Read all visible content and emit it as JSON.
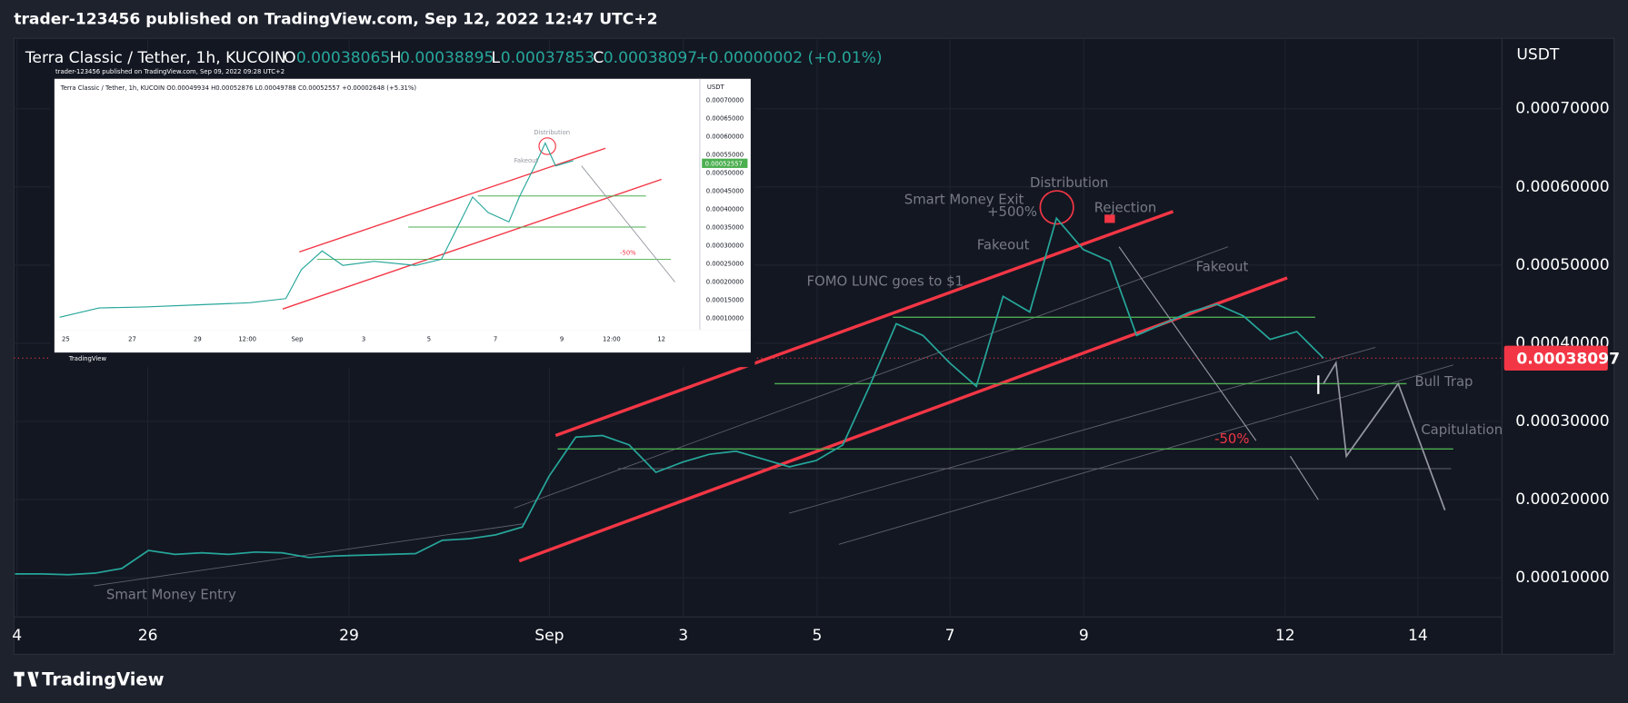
{
  "header": {
    "title": "trader-123456 published on TradingView.com, Sep 12, 2022 12:47 UTC+2"
  },
  "legend": {
    "symbol": "Terra Classic / Tether, 1h, KUCOIN",
    "o_label": "O",
    "o": "0.00038065",
    "h_label": "H",
    "h": "0.00038895",
    "l_label": "L",
    "l": "0.00037853",
    "c_label": "C",
    "c": "0.00038097",
    "change": "+0.00000002 (+0.01%)"
  },
  "chart_data": {
    "type": "line",
    "color": "#26a69a",
    "currency": "USDT",
    "grid": true,
    "values": [
      0.000105,
      0.000105,
      0.000104,
      0.000106,
      0.000112,
      0.000135,
      0.00013,
      0.000132,
      0.00013,
      0.000133,
      0.000132,
      0.000126,
      0.000128,
      0.000129,
      0.00013,
      0.000131,
      0.000148,
      0.00015,
      0.000155,
      0.000165,
      0.00023,
      0.00028,
      0.000282,
      0.00027,
      0.000235,
      0.000248,
      0.000258,
      0.000262,
      0.000252,
      0.000242,
      0.00025,
      0.00027,
      0.000345,
      0.000425,
      0.00041,
      0.000375,
      0.000345,
      0.00046,
      0.00044,
      0.00056,
      0.00052,
      0.000505,
      0.00041,
      0.000425,
      0.00044,
      0.00045,
      0.000435,
      0.000405,
      0.000415,
      0.000381
    ],
    "ylim": [
      5e-05,
      0.00079
    ],
    "yticks": [
      {
        "value": 0.0007,
        "label": "0.00070000"
      },
      {
        "value": 0.0006,
        "label": "0.00060000"
      },
      {
        "value": 0.0005,
        "label": "0.00050000"
      },
      {
        "value": 0.0004,
        "label": "0.00040000"
      },
      {
        "value": 0.0003,
        "label": "0.00030000"
      },
      {
        "value": 0.0002,
        "label": "0.00020000"
      },
      {
        "value": 0.0001,
        "label": "0.00010000"
      }
    ],
    "x_labels": [
      "4",
      "26",
      "29",
      "Sep",
      "3",
      "5",
      "7",
      "9",
      "12",
      "14"
    ],
    "last_price": 0.00038097,
    "annotations": [
      "Smart Money Entry",
      "FOMO LUNC goes to $1",
      "Fakeout",
      "Smart Money Exit",
      "+500%",
      "Distribution",
      "Rejection",
      "Fakeout",
      "-50%",
      "Bull Trap",
      "Capitulation"
    ]
  },
  "inset": {
    "header": "trader-123456 published on TradingView.com, Sep 09, 2022 09:28 UTC+2",
    "legend": "Terra Classic / Tether, 1h, KUCOIN  O0.00049934 H0.00052876 L0.00049788 C0.00052557 +0.00002648 (+5.31%)",
    "currency": "USDT",
    "y_labels": [
      "0.00070000",
      "0.00065000",
      "0.00060000",
      "0.00055000",
      "0.00050000",
      "0.00045000",
      "0.00040000",
      "0.00035000",
      "0.00030000",
      "0.00025000",
      "0.00020000",
      "0.00015000",
      "0.00010000"
    ],
    "x_labels": [
      "25",
      "27",
      "29",
      "12:00",
      "Sep",
      "3",
      "5",
      "7",
      "9",
      "12:00",
      "12"
    ],
    "price_tag": "0.00052557",
    "distribution": "Distribution",
    "fakeout": "Fakeout",
    "drop": "-50%",
    "brand": "TradingView"
  },
  "footer": {
    "brand": "TradingView"
  }
}
